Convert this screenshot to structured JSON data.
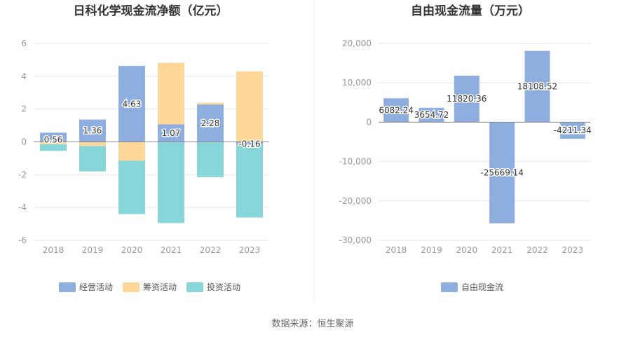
{
  "chart_data": [
    {
      "type": "bar",
      "stacked": true,
      "title": "日科化学现金流净额（亿元）",
      "categories": [
        "2018",
        "2019",
        "2020",
        "2021",
        "2022",
        "2023"
      ],
      "ylim": [
        -6,
        6
      ],
      "yticks": [
        -6,
        -4,
        -2,
        0,
        2,
        4,
        6
      ],
      "ytick_labels": [
        "-6",
        "-4",
        "-2",
        "0",
        "2",
        "4",
        "6"
      ],
      "series": [
        {
          "name": "经营活动",
          "color": "#8eaedf",
          "values": [
            0.56,
            1.36,
            4.63,
            1.07,
            2.28,
            -0.16
          ]
        },
        {
          "name": "筹资活动",
          "color": "#ffd899",
          "values": [
            -0.15,
            -0.25,
            -1.15,
            3.75,
            0.1,
            4.3
          ]
        },
        {
          "name": "投资活动",
          "color": "#87d7da",
          "values": [
            -0.4,
            -1.55,
            -3.25,
            -4.95,
            -2.15,
            -4.45
          ]
        }
      ],
      "data_labels": [
        "0.56",
        "1.36",
        "4.63",
        "1.07",
        "2.28",
        "-0.16"
      ],
      "legend": [
        "经营活动",
        "筹资活动",
        "投资活动"
      ],
      "legend_position": "bottom"
    },
    {
      "type": "bar",
      "title": "自由现金流量（万元）",
      "categories": [
        "2018",
        "2019",
        "2020",
        "2021",
        "2022",
        "2023"
      ],
      "ylim": [
        -30000,
        20000
      ],
      "yticks": [
        -30000,
        -20000,
        -10000,
        0,
        10000,
        20000
      ],
      "ytick_labels": [
        "-30,000",
        "-20,000",
        "-10,000",
        "0",
        "10,000",
        "20,000"
      ],
      "series": [
        {
          "name": "自由现金流",
          "color": "#8eaedf",
          "values": [
            6082.24,
            3654.72,
            11820.36,
            -25669.14,
            18108.52,
            -4211.34
          ]
        }
      ],
      "data_labels": [
        "6082.24",
        "3654.72",
        "11820.36",
        "-25669.14",
        "18108.52",
        "-4211.34"
      ],
      "legend": [
        "自由现金流"
      ],
      "legend_position": "bottom"
    }
  ],
  "source": "数据来源：恒生聚源"
}
